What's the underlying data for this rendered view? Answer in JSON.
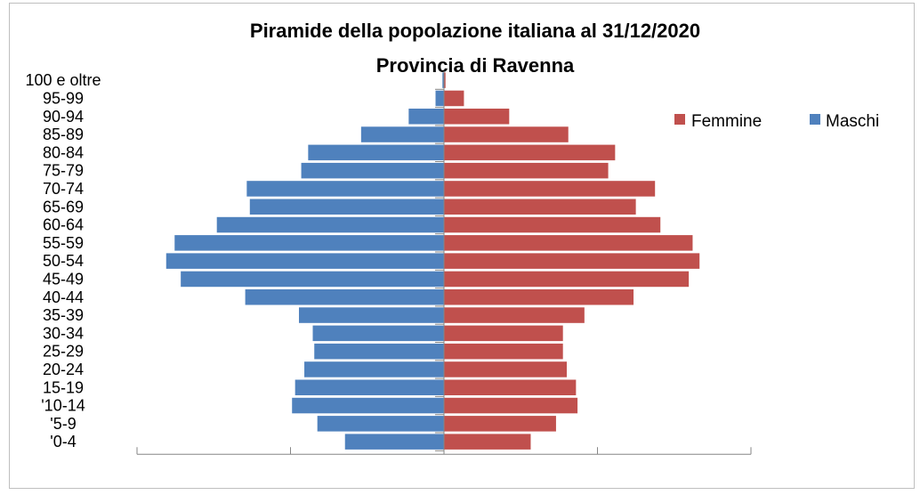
{
  "chart_data": {
    "type": "bar",
    "orientation": "horizontal",
    "title": "Piramide della popolazione italiana al 31/12/2020",
    "subtitle": "Provincia di Ravenna",
    "categories": [
      "'0-4",
      "'5-9",
      "'10-14",
      "15-19",
      "20-24",
      "25-29",
      "30-34",
      "35-39",
      "40-44",
      "45-49",
      "50-54",
      "55-59",
      "60-64",
      "65-69",
      "70-74",
      "75-79",
      "80-84",
      "85-89",
      "90-94",
      "95-99",
      "100 e oltre"
    ],
    "series": [
      {
        "name": "Femmine",
        "color": "#c0504d",
        "values": [
          11300,
          14600,
          17400,
          17200,
          16000,
          15500,
          15500,
          18300,
          24700,
          31900,
          33300,
          32400,
          28200,
          25000,
          27500,
          21400,
          22300,
          16200,
          8500,
          2600,
          200
        ]
      },
      {
        "name": "Maschi",
        "color": "#4f81bd",
        "values": [
          12900,
          16500,
          19800,
          19400,
          18200,
          16900,
          17100,
          18900,
          25900,
          34300,
          36200,
          35100,
          29600,
          25300,
          25700,
          18600,
          17700,
          10800,
          4600,
          1100,
          200
        ]
      }
    ],
    "legend": "top-right",
    "grid": false,
    "xlim": [
      -40000,
      40000
    ]
  }
}
